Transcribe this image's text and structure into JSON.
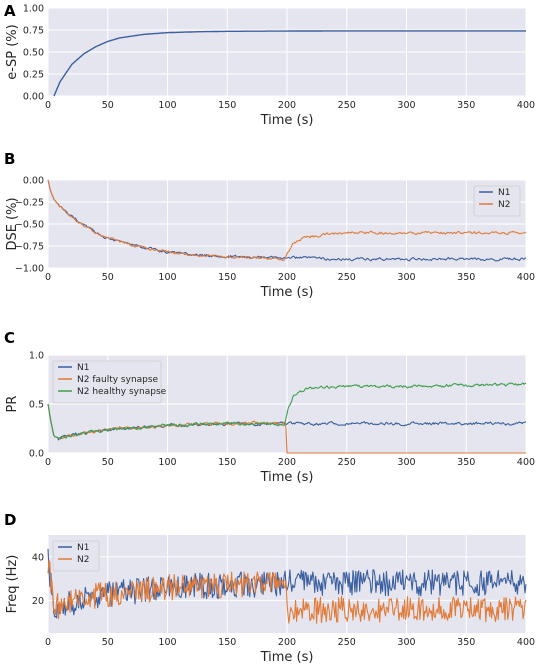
{
  "colors": {
    "blue": "#3b5fa0",
    "orange": "#e07b39",
    "green": "#3f9e4d",
    "panel_bg": "#e5e5ef",
    "grid": "#ffffff"
  },
  "chart_data": [
    {
      "panel": "A",
      "type": "line",
      "xlabel": "Time (s)",
      "ylabel": "e-SP (%)",
      "xlim": [
        0,
        400
      ],
      "ylim": [
        0,
        1
      ],
      "xticks": [
        0,
        50,
        100,
        150,
        200,
        250,
        300,
        350,
        400
      ],
      "xtick_labels": [
        "0",
        "50",
        "100",
        "150",
        "200",
        "250",
        "300",
        "350",
        "400"
      ],
      "yticks": [
        0,
        0.25,
        0.5,
        0.75,
        1
      ],
      "ytick_labels": [
        "0.00",
        "0.25",
        "0.50",
        "0.75",
        "1.00"
      ],
      "grid": true,
      "series": [
        {
          "color_key": "blue",
          "x": [
            5,
            10,
            20,
            30,
            40,
            50,
            60,
            80,
            100,
            125,
            150,
            200,
            250,
            300,
            350,
            400
          ],
          "y": [
            0,
            0.16,
            0.36,
            0.48,
            0.56,
            0.62,
            0.66,
            0.7,
            0.72,
            0.73,
            0.735,
            0.738,
            0.74,
            0.74,
            0.74,
            0.74
          ]
        }
      ]
    },
    {
      "panel": "B",
      "type": "line",
      "xlabel": "Time (s)",
      "ylabel": "DSE (%)",
      "xlim": [
        0,
        400
      ],
      "ylim": [
        -1,
        0
      ],
      "xticks": [
        0,
        50,
        100,
        150,
        200,
        250,
        300,
        350,
        400
      ],
      "xtick_labels": [
        "0",
        "50",
        "100",
        "150",
        "200",
        "250",
        "300",
        "350",
        "400"
      ],
      "yticks": [
        0,
        -0.25,
        -0.5,
        -0.75,
        -1
      ],
      "ytick_labels": [
        "0.00",
        "−0.25",
        "−0.50",
        "−0.75",
        "−1.00"
      ],
      "grid": true,
      "legend": {
        "position": "top-right",
        "labels": [
          "N1",
          "N2"
        ]
      },
      "series": [
        {
          "name": "N1",
          "color_key": "blue",
          "x": [
            0,
            2,
            5,
            10,
            20,
            30,
            40,
            50,
            60,
            80,
            100,
            120,
            150,
            180,
            200,
            250,
            300,
            350,
            400
          ],
          "y": [
            0,
            -0.12,
            -0.22,
            -0.3,
            -0.42,
            -0.52,
            -0.6,
            -0.66,
            -0.7,
            -0.77,
            -0.82,
            -0.85,
            -0.87,
            -0.88,
            -0.88,
            -0.9,
            -0.9,
            -0.9,
            -0.9
          ]
        },
        {
          "name": "N2",
          "color_key": "orange",
          "x": [
            0,
            2,
            5,
            10,
            20,
            30,
            40,
            50,
            60,
            80,
            100,
            120,
            150,
            180,
            198,
            201,
            205,
            215,
            230,
            250,
            300,
            350,
            400
          ],
          "y": [
            0,
            -0.12,
            -0.22,
            -0.3,
            -0.42,
            -0.52,
            -0.6,
            -0.66,
            -0.7,
            -0.77,
            -0.82,
            -0.85,
            -0.87,
            -0.89,
            -0.9,
            -0.82,
            -0.72,
            -0.65,
            -0.62,
            -0.6,
            -0.6,
            -0.6,
            -0.6
          ]
        }
      ]
    },
    {
      "panel": "C",
      "type": "line",
      "xlabel": "Time (s)",
      "ylabel": "PR",
      "xlim": [
        0,
        400
      ],
      "ylim": [
        0,
        1
      ],
      "xticks": [
        0,
        50,
        100,
        150,
        200,
        250,
        300,
        350,
        400
      ],
      "xtick_labels": [
        "0",
        "50",
        "100",
        "150",
        "200",
        "250",
        "300",
        "350",
        "400"
      ],
      "yticks": [
        0,
        0.5,
        1
      ],
      "ytick_labels": [
        "0.0",
        "0.5",
        "1.0"
      ],
      "grid": true,
      "legend": {
        "position": "top-left",
        "labels": [
          "N1",
          "N2 faulty synapse",
          "N2 healthy synapse"
        ]
      },
      "series": [
        {
          "name": "N1",
          "color_key": "blue",
          "x": [
            0,
            2,
            5,
            10,
            20,
            40,
            60,
            100,
            150,
            200,
            250,
            300,
            350,
            400
          ],
          "y": [
            0.5,
            0.35,
            0.17,
            0.15,
            0.18,
            0.22,
            0.25,
            0.28,
            0.3,
            0.3,
            0.3,
            0.3,
            0.3,
            0.3
          ]
        },
        {
          "name": "N2 faulty synapse",
          "color_key": "orange",
          "x": [
            0,
            2,
            5,
            10,
            20,
            40,
            60,
            100,
            150,
            199,
            200,
            250,
            300,
            350,
            400
          ],
          "y": [
            0.5,
            0.35,
            0.17,
            0.15,
            0.18,
            0.22,
            0.25,
            0.28,
            0.3,
            0.3,
            0,
            0,
            0,
            0,
            0
          ]
        },
        {
          "name": "N2 healthy synapse",
          "color_key": "green",
          "x": [
            0,
            2,
            5,
            10,
            20,
            40,
            60,
            100,
            150,
            198,
            201,
            205,
            215,
            230,
            250,
            300,
            350,
            400
          ],
          "y": [
            0.5,
            0.35,
            0.17,
            0.15,
            0.18,
            0.22,
            0.25,
            0.28,
            0.3,
            0.3,
            0.45,
            0.58,
            0.65,
            0.67,
            0.68,
            0.68,
            0.69,
            0.7
          ]
        }
      ]
    },
    {
      "panel": "D",
      "type": "line",
      "xlabel": "Time (s)",
      "ylabel": "Freq (Hz)",
      "xlim": [
        0,
        400
      ],
      "ylim": [
        5,
        50
      ],
      "xticks": [
        0,
        50,
        100,
        150,
        200,
        250,
        300,
        350,
        400
      ],
      "xtick_labels": [
        "0",
        "50",
        "100",
        "150",
        "200",
        "250",
        "300",
        "350",
        "400"
      ],
      "yticks": [
        20,
        40
      ],
      "ytick_labels": [
        "20",
        "40"
      ],
      "grid": true,
      "legend": {
        "position": "top-left",
        "labels": [
          "N1",
          "N2"
        ]
      },
      "series": [
        {
          "name": "N1",
          "color_key": "blue",
          "x": [
            0,
            5,
            10,
            25,
            50,
            100,
            150,
            200,
            250,
            300,
            350,
            400
          ],
          "y": [
            38,
            18,
            17,
            20,
            23,
            26,
            27,
            28,
            28,
            28,
            28,
            28
          ],
          "noise": 6
        },
        {
          "name": "N2",
          "color_key": "orange",
          "x": [
            0,
            5,
            10,
            25,
            50,
            100,
            150,
            199,
            200,
            250,
            300,
            350,
            400
          ],
          "y": [
            38,
            18,
            17,
            20,
            23,
            26,
            27,
            28,
            15,
            16,
            16,
            16,
            16
          ],
          "noise": 6
        }
      ]
    }
  ]
}
